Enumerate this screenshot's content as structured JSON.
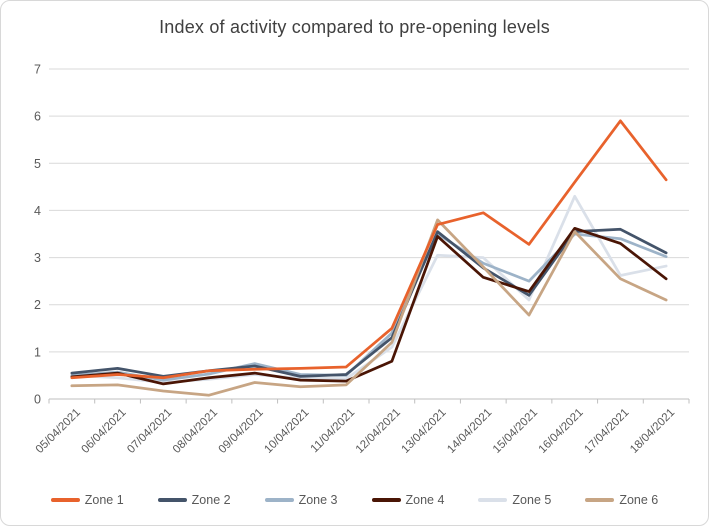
{
  "chart_data": {
    "type": "line",
    "title": "Index of activity compared to pre-opening levels",
    "categories": [
      "05/04/2021",
      "06/04/2021",
      "07/04/2021",
      "08/04/2021",
      "09/04/2021",
      "10/04/2021",
      "11/04/2021",
      "12/04/2021",
      "13/04/2021",
      "14/04/2021",
      "15/04/2021",
      "16/04/2021",
      "17/04/2021",
      "18/04/2021"
    ],
    "series": [
      {
        "name": "Zone 1",
        "color": "#E8622C",
        "values": [
          0.45,
          0.52,
          0.45,
          0.6,
          0.63,
          0.65,
          0.68,
          1.5,
          3.7,
          3.95,
          3.28,
          4.6,
          5.9,
          4.65
        ]
      },
      {
        "name": "Zone 2",
        "color": "#44546A",
        "values": [
          0.55,
          0.65,
          0.48,
          0.6,
          0.7,
          0.48,
          0.52,
          1.3,
          3.55,
          2.78,
          2.2,
          3.55,
          3.6,
          3.1
        ]
      },
      {
        "name": "Zone 3",
        "color": "#9DB3C8",
        "values": [
          0.5,
          0.57,
          0.4,
          0.53,
          0.75,
          0.52,
          0.5,
          1.4,
          3.5,
          2.88,
          2.5,
          3.5,
          3.4,
          3.02
        ]
      },
      {
        "name": "Zone 4",
        "color": "#4A1505",
        "values": [
          0.47,
          0.55,
          0.32,
          0.45,
          0.55,
          0.4,
          0.38,
          0.8,
          3.45,
          2.58,
          2.28,
          3.62,
          3.3,
          2.55
        ]
      },
      {
        "name": "Zone 5",
        "color": "#DAE0E9",
        "values": [
          0.5,
          0.45,
          0.35,
          0.42,
          0.52,
          0.44,
          0.43,
          1.1,
          3.05,
          3.0,
          2.1,
          4.3,
          2.62,
          2.82
        ]
      },
      {
        "name": "Zone 6",
        "color": "#C7A584",
        "values": [
          0.28,
          0.3,
          0.17,
          0.08,
          0.35,
          0.26,
          0.3,
          1.2,
          3.8,
          2.8,
          1.78,
          3.55,
          2.55,
          2.1
        ]
      }
    ],
    "yticks": [
      "0",
      "1",
      "2",
      "3",
      "4",
      "5",
      "6",
      "7"
    ],
    "ylim": [
      0,
      7
    ],
    "grid": true,
    "legend_position": "bottom",
    "xlabel": "",
    "ylabel": ""
  },
  "style": {
    "background": "#FFFFFF",
    "frame_border": "#D8D8D8",
    "gridline": "#D9D9D9",
    "axis_line": "#BFBFBF",
    "title_text": "#404040",
    "tick_text": "#595959",
    "legend_text": "#595959"
  }
}
